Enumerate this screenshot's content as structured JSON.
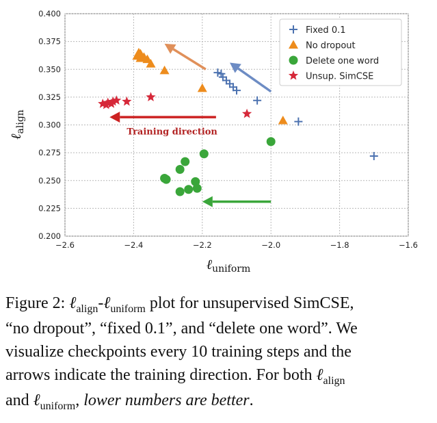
{
  "chart_data": {
    "type": "scatter",
    "xlabel": "ℓ",
    "xlabel_sub": "uniform",
    "ylabel": "ℓ",
    "ylabel_sub": "align",
    "xlim": [
      -2.6,
      -1.6
    ],
    "ylim": [
      0.2,
      0.4
    ],
    "xticks": [
      -2.6,
      -2.4,
      -2.2,
      -2.0,
      -1.8,
      -1.6
    ],
    "xtick_labels": [
      "−2.6",
      "−2.4",
      "−2.2",
      "−2.0",
      "−1.8",
      "−1.6"
    ],
    "yticks": [
      0.2,
      0.225,
      0.25,
      0.275,
      0.3,
      0.325,
      0.35,
      0.375,
      0.4
    ],
    "ytick_labels": [
      "0.200",
      "0.225",
      "0.250",
      "0.275",
      "0.300",
      "0.325",
      "0.350",
      "0.375",
      "0.400"
    ],
    "grid": true,
    "legend_position": "top-right",
    "series": [
      {
        "name": "Fixed 0.1",
        "marker": "plus",
        "color": "#4c72b0",
        "points": [
          [
            -2.155,
            0.347
          ],
          [
            -2.145,
            0.346
          ],
          [
            -2.14,
            0.343
          ],
          [
            -2.13,
            0.34
          ],
          [
            -2.12,
            0.337
          ],
          [
            -2.11,
            0.334
          ],
          [
            -2.1,
            0.331
          ],
          [
            -2.04,
            0.322
          ],
          [
            -1.92,
            0.303
          ],
          [
            -1.7,
            0.272
          ]
        ]
      },
      {
        "name": "No dropout",
        "marker": "triangle",
        "color": "#ed8c1d",
        "points": [
          [
            -2.39,
            0.362
          ],
          [
            -2.385,
            0.365
          ],
          [
            -2.38,
            0.364
          ],
          [
            -2.38,
            0.36
          ],
          [
            -2.37,
            0.361
          ],
          [
            -2.36,
            0.359
          ],
          [
            -2.35,
            0.355
          ],
          [
            -2.31,
            0.349
          ],
          [
            -2.2,
            0.333
          ],
          [
            -1.965,
            0.304
          ]
        ]
      },
      {
        "name": "Delete one word",
        "marker": "circle",
        "color": "#3aa63a",
        "points": [
          [
            -2.0,
            0.285
          ],
          [
            -2.195,
            0.274
          ],
          [
            -2.25,
            0.267
          ],
          [
            -2.265,
            0.26
          ],
          [
            -2.31,
            0.252
          ],
          [
            -2.305,
            0.251
          ],
          [
            -2.22,
            0.249
          ],
          [
            -2.215,
            0.243
          ],
          [
            -2.24,
            0.242
          ],
          [
            -2.265,
            0.24
          ]
        ]
      },
      {
        "name": "Unsup. SimCSE",
        "marker": "star",
        "color": "#d62839",
        "points": [
          [
            -2.49,
            0.319
          ],
          [
            -2.48,
            0.318
          ],
          [
            -2.475,
            0.32
          ],
          [
            -2.465,
            0.319
          ],
          [
            -2.46,
            0.321
          ],
          [
            -2.45,
            0.322
          ],
          [
            -2.42,
            0.321
          ],
          [
            -2.35,
            0.325
          ],
          [
            -2.07,
            0.31
          ]
        ]
      }
    ],
    "arrows": [
      {
        "color": "#e0905a",
        "from": [
          -2.19,
          0.35
        ],
        "to": [
          -2.31,
          0.373
        ]
      },
      {
        "color": "#6d8cc4",
        "from": [
          -2.0,
          0.33
        ],
        "to": [
          -2.12,
          0.356
        ]
      },
      {
        "color": "#cc2222",
        "from": [
          -2.16,
          0.307
        ],
        "to": [
          -2.47,
          0.307
        ]
      },
      {
        "color": "#3aa63a",
        "from": [
          -2.0,
          0.231
        ],
        "to": [
          -2.2,
          0.231
        ]
      }
    ],
    "annotations": [
      {
        "text": "Training direction",
        "x": -2.42,
        "y": 0.294
      }
    ]
  },
  "caption": {
    "line1": [
      "Figure 2: ",
      "ℓ",
      "align",
      "-",
      "ℓ",
      "uniform",
      " plot for unsupervised SimCSE,"
    ],
    "line2": "“no dropout”, “fixed 0.1”, and “delete one word”.  We",
    "line3": "visualize checkpoints every 10 training steps and the",
    "line4_a": "arrows indicate the training direction.  For both ",
    "line4_l": "ℓ",
    "line4_sub": "align",
    "line5_a": "and ",
    "line5_l": "ℓ",
    "line5_sub": "uniform",
    "line5_b": ", ",
    "line5_i": "lower numbers are better",
    "line5_c": "."
  }
}
